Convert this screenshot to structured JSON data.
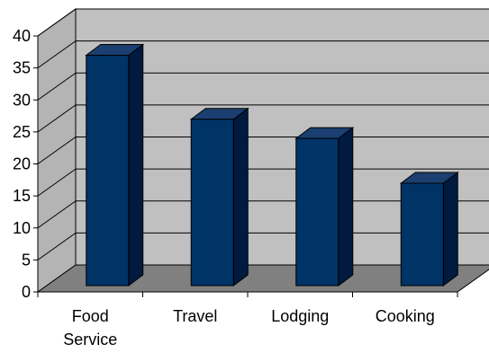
{
  "chart_data": {
    "type": "bar",
    "style": "3d-column",
    "categories": [
      "Food Service",
      "Travel",
      "Lodging",
      "Cooking"
    ],
    "values": [
      36,
      26,
      23,
      16
    ],
    "y_ticks": [
      "0",
      "5",
      "10",
      "15",
      "20",
      "25",
      "30",
      "35",
      "40"
    ],
    "ylim": [
      0,
      40
    ],
    "grid": true,
    "legend": "none",
    "colors": {
      "bar_front": "#003366",
      "bar_side": "#001a40",
      "bar_top": "#1a3f70",
      "back_wall": "#c0c0c0",
      "side_wall": "#b4b4b4",
      "floor": "#808080",
      "gridline": "#000000"
    }
  }
}
